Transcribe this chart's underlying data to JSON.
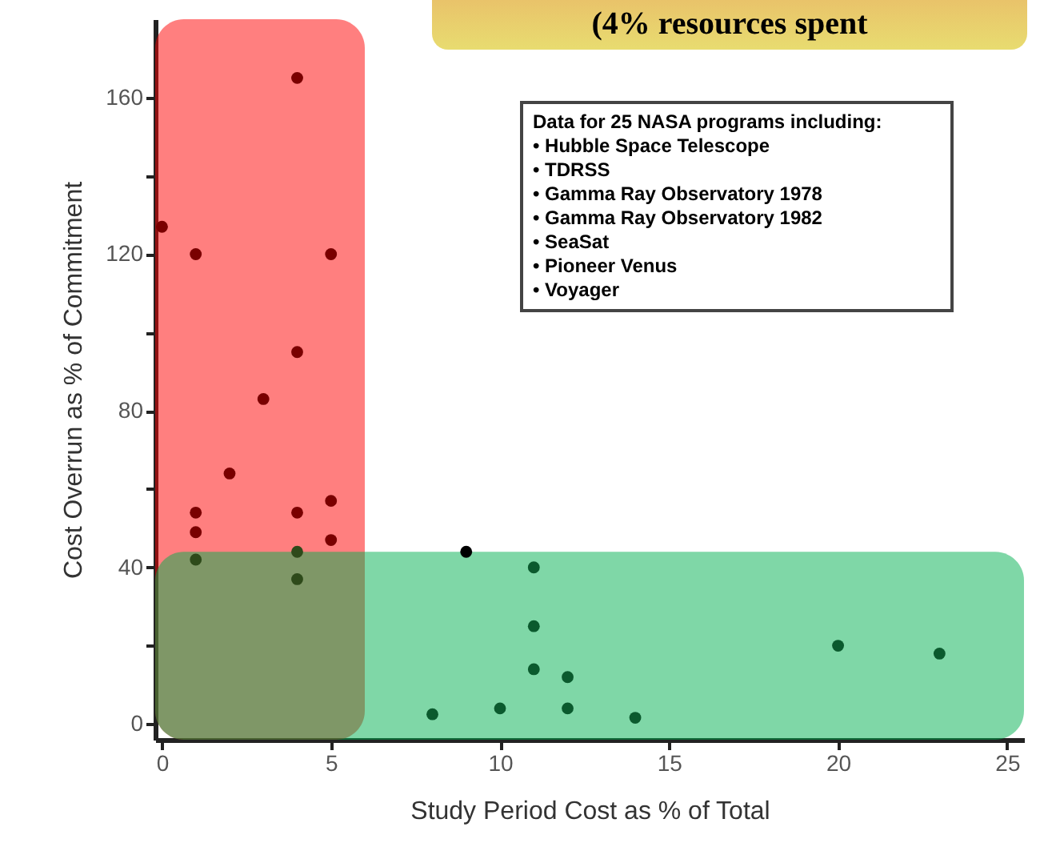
{
  "chart_data": {
    "type": "scatter",
    "xlabel": "Study Period Cost as % of Total",
    "ylabel": "Cost Overrun as % of Commitment",
    "annotations": [
      "(4% resources spent",
      "Data for 25 NASA programs including:",
      "• Hubble Space Telescope",
      "• TDRSS",
      "• Gamma Ray Observatory 1978",
      "• Gamma Ray Observatory 1982",
      "• SeaSat",
      "• Pioneer Venus",
      "• Voyager"
    ],
    "series": [
      {
        "x": [
          0,
          1,
          1,
          1,
          1,
          2,
          3,
          4,
          4,
          4,
          4,
          4,
          5,
          5,
          5,
          9,
          11,
          11,
          11,
          12,
          8,
          10,
          12,
          14,
          20,
          23
        ],
        "values": [
          127,
          120,
          54,
          49,
          42,
          64,
          83,
          165,
          95,
          54,
          44,
          37,
          120,
          57,
          47,
          44,
          40,
          25,
          14,
          12,
          2.5,
          4,
          4,
          1.6,
          20,
          18
        ],
        "colors": [
          "#7a0000",
          "#7a0000",
          "#7a0000",
          "#7a0000",
          "#2e4a1a",
          "#7a0000",
          "#7a0000",
          "#7a0000",
          "#7a0000",
          "#7a0000",
          "#2e4a1a",
          "#2e4a1a",
          "#7a0000",
          "#7a0000",
          "#7a0000",
          "#000000",
          "#0b5a2e",
          "#0b5a2e",
          "#0b5a2e",
          "#0b5a2e",
          "#0b5a2e",
          "#0b5a2e",
          "#0b5a2e",
          "#0b5a2e",
          "#0b5a2e",
          "#0b5a2e"
        ]
      }
    ],
    "bands": [
      {
        "axis": "x",
        "from": -0.2,
        "to": 6,
        "color": "#ff0000"
      },
      {
        "axis": "y",
        "from": -4,
        "to": 44,
        "color": "#00b050"
      }
    ],
    "xlim": [
      -0.2,
      25.5
    ],
    "ylim": [
      -4,
      180
    ],
    "xticks": [
      0,
      5,
      10,
      15,
      20,
      25
    ],
    "yticks": [
      0,
      {
        "value": 20,
        "label": null
      },
      40,
      {
        "value": 60,
        "label": null
      },
      80,
      {
        "value": 100,
        "label": null
      },
      120,
      {
        "value": 140,
        "label": null
      },
      160
    ],
    "marker": "circle",
    "grid": false
  }
}
